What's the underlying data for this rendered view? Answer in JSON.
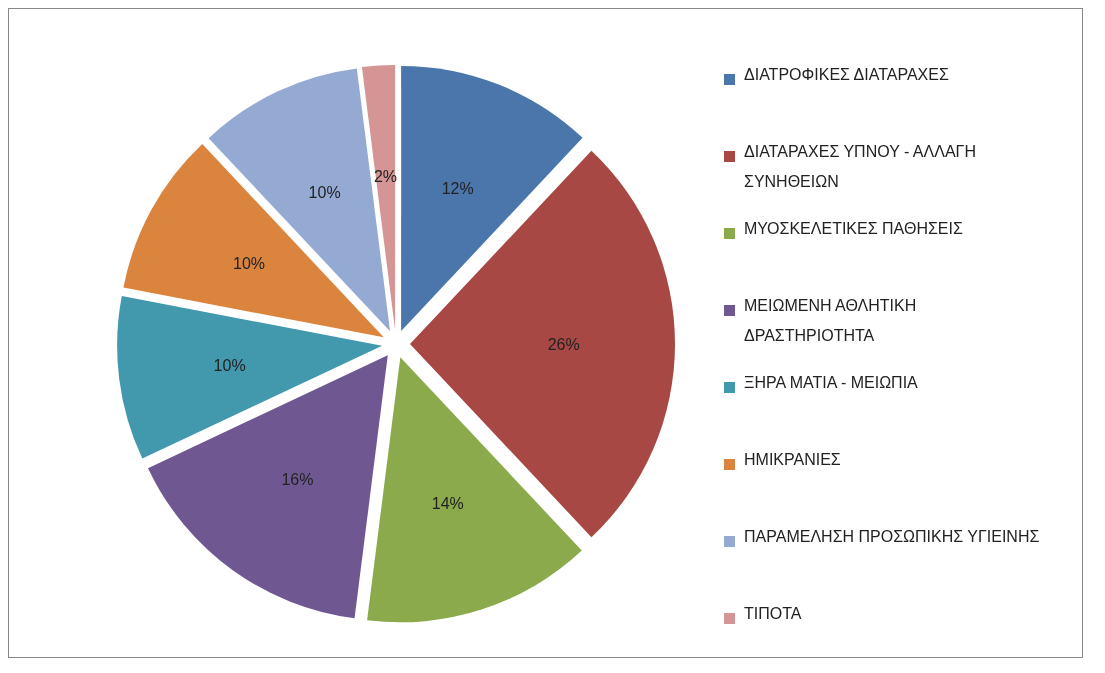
{
  "chart_data": {
    "type": "pie",
    "categories": [
      "ΔΙΑΤΡΟΦΙΚΕΣ ΔΙΑΤΑΡΑΧΕΣ",
      "ΔΙΑΤΑΡΑΧΕΣ ΥΠΝΟΥ - ΑΛΛΑΓΗ ΣΥΝΗΘΕΙΩΝ",
      "ΜΥΟΣΚΕΛΕΤΙΚΕΣ ΠΑΘΗΣΕΙΣ",
      "ΜΕΙΩΜΕΝΗ ΑΘΛΗΤΙΚΗ ΔΡΑΣΤΗΡΙΟΤΗΤΑ",
      "ΞΗΡΑ ΜΑΤΙΑ - ΜΕΙΩΠΙΑ",
      "ΗΜΙΚΡΑΝΙΕΣ",
      "ΠΑΡΑΜΕΛΗΣΗ ΠΡΟΣΩΠΙΚΗΣ ΥΓΙΕΙΝΗΣ",
      "ΤΙΠΟΤΑ"
    ],
    "values": [
      12,
      26,
      14,
      16,
      10,
      10,
      10,
      2
    ],
    "value_labels": [
      "12%",
      "26%",
      "14%",
      "16%",
      "10%",
      "10%",
      "10%",
      "2%"
    ],
    "colors": [
      "#4a76ac",
      "#a84845",
      "#8aaa4c",
      "#6f5892",
      "#4298ad",
      "#db843e",
      "#95aad2",
      "#d49594"
    ],
    "legend": "right"
  }
}
